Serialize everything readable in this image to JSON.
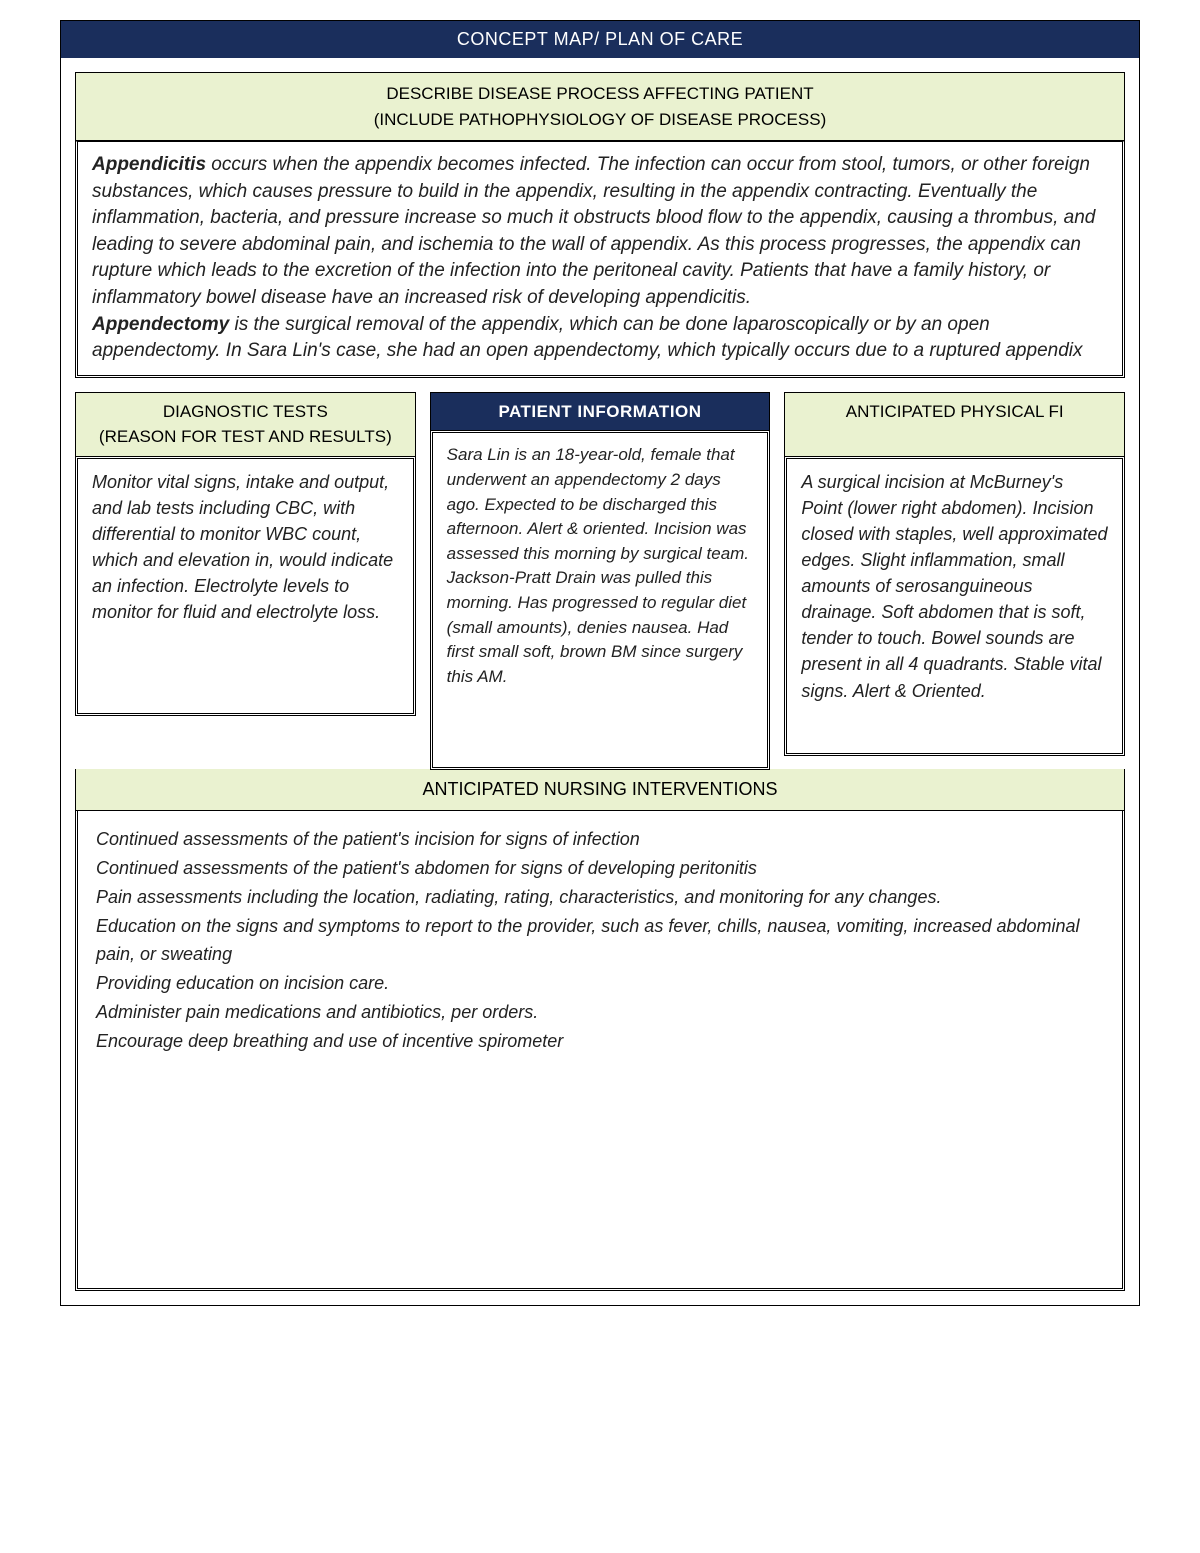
{
  "colors": {
    "header_bg": "#1a2e5c",
    "header_text": "#ffffff",
    "section_bg": "#eaf2d0",
    "border": "#000000",
    "body_text": "#222222",
    "page_bg": "#ffffff"
  },
  "typography": {
    "title_fontsize": 18,
    "section_header_fontsize": 17,
    "body_fontsize": 19,
    "col_body_fontsize": 18,
    "font_family": "Trebuchet MS"
  },
  "page": {
    "title": "CONCEPT MAP/ PLAN OF CARE"
  },
  "disease": {
    "header_line1": "DESCRIBE DISEASE PROCESS AFFECTING PATIENT",
    "header_line2": "(INCLUDE PATHOPHYSIOLOGY OF DISEASE PROCESS)",
    "bold1": "Appendicitis",
    "body1": " occurs when the appendix becomes infected. The infection can occur from stool, tumors, or other foreign substances, which causes pressure to build in the appendix, resulting in the appendix contracting. Eventually the inflammation, bacteria, and pressure increase so much it obstructs blood flow to the appendix, causing a thrombus, and leading to severe abdominal pain, and ischemia to the wall of appendix. As this process progresses, the appendix can rupture which leads to the excretion of the infection into the peritoneal cavity. Patients that have a family history, or inflammatory bowel disease have an increased risk of developing appendicitis. ",
    "bold2": "Appendectomy",
    "body2": " is the surgical removal of the appendix, which can be done laparoscopically or by an open appendectomy. In Sara Lin's case, she had an open appendectomy, which typically occurs due to a ruptured appendix"
  },
  "columns": {
    "diagnostic": {
      "header_line1": "DIAGNOSTIC TESTS",
      "header_line2": "(REASON FOR TEST AND RESULTS)",
      "body": "Monitor vital signs, intake and output, and lab tests including CBC, with differential to monitor WBC count, which and elevation in, would indicate an infection.  Electrolyte levels to monitor for fluid and electrolyte loss."
    },
    "patient_info": {
      "header": "PATIENT INFORMATION",
      "body": "Sara Lin is an 18-year-old, female that underwent an appendectomy 2 days ago. Expected to be discharged this afternoon. Alert & oriented. Incision was assessed this morning by surgical team. Jackson-Pratt Drain was pulled this morning.  Has progressed to regular diet (small amounts), denies nausea. Had first small soft, brown BM since surgery this AM."
    },
    "physical": {
      "header": "ANTICIPATED PHYSICAL FI",
      "body": "A surgical incision at McBurney's Point (lower right abdomen). Incision closed with staples, well approximated edges. Slight inflammation, small amounts of serosanguineous drainage. Soft abdomen that is soft, tender to touch. Bowel sounds are present in all 4 quadrants. Stable vital signs. Alert & Oriented."
    }
  },
  "interventions": {
    "header": "ANTICIPATED NURSING INTERVENTIONS",
    "lines": [
      "Continued assessments of the patient's incision for signs of infection",
      "Continued assessments of the patient's abdomen for signs of developing peritonitis",
      "Pain assessments including the location, radiating, rating, characteristics, and monitoring for any changes.",
      "Education on the signs and symptoms to report to the provider, such as fever, chills, nausea, vomiting, increased abdominal pain, or sweating",
      "Providing education on incision care.",
      "Administer pain medications and antibiotics, per orders.",
      "Encourage deep breathing and use of incentive spirometer"
    ]
  }
}
